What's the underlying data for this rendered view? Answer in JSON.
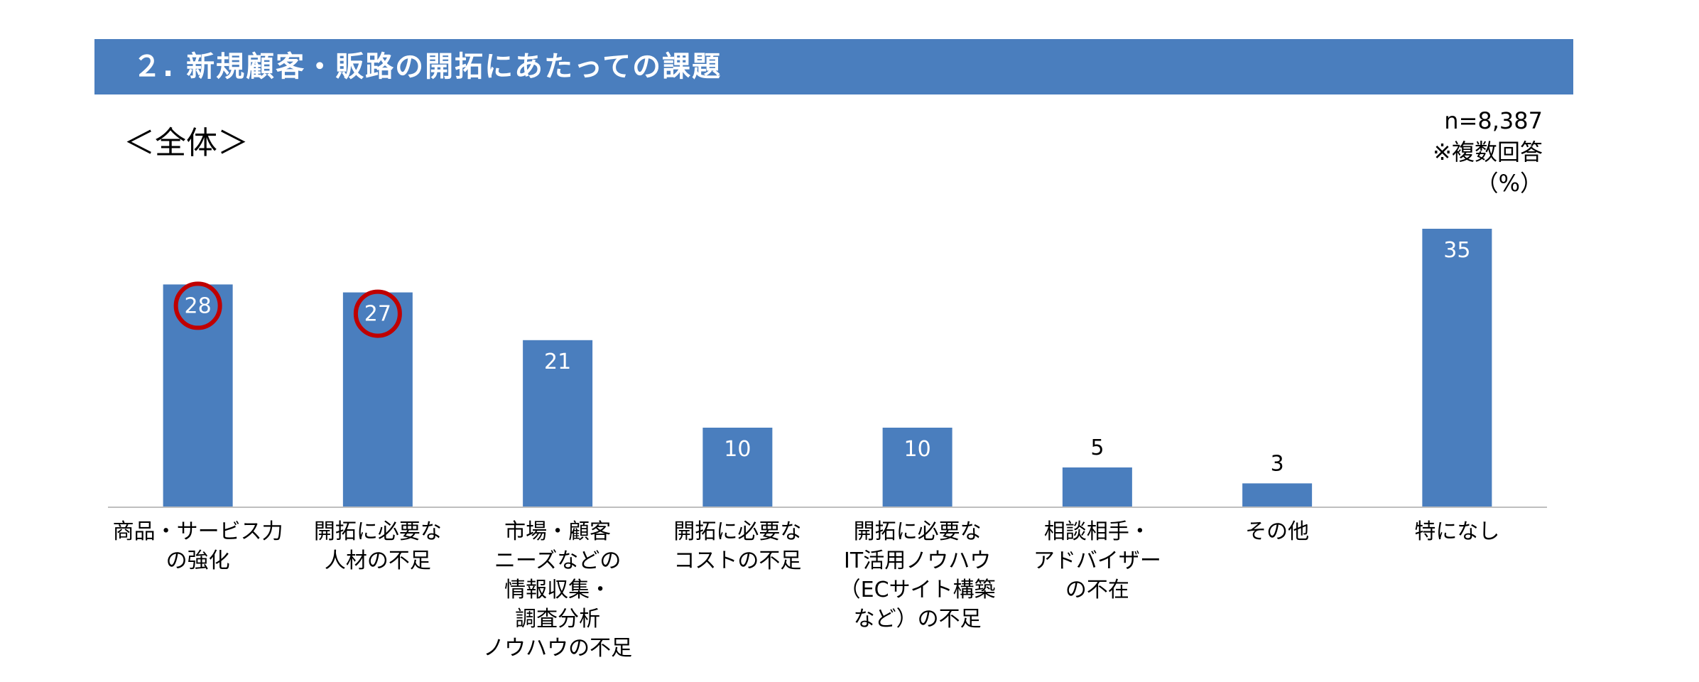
{
  "header": {
    "title": "２. 新規顧客・販路の開拓にあたっての課題"
  },
  "subtitle": "＜全体＞",
  "meta": {
    "sample": "n=8,387",
    "note": "※複数回答",
    "unit": "（%）"
  },
  "colors": {
    "bar": "#4a7ebe",
    "header": "#4a7ebe",
    "highlight": "#c00000",
    "axis": "#bfbfbf"
  },
  "chart_data": {
    "type": "bar",
    "categories": [
      [
        "商品・サービス力",
        "の強化"
      ],
      [
        "開拓に必要な",
        "人材の不足"
      ],
      [
        "市場・顧客",
        "ニーズなどの",
        "情報収集・",
        "調査分析",
        "ノウハウの不足"
      ],
      [
        "開拓に必要な",
        "コストの不足"
      ],
      [
        "開拓に必要な",
        "IT活用ノウハウ",
        "（ECサイト構築",
        "など）の不足"
      ],
      [
        "相談相手・",
        "アドバイザー",
        "の不在"
      ],
      [
        "その他"
      ],
      [
        "特になし"
      ]
    ],
    "values": [
      28,
      27,
      21,
      10,
      10,
      5,
      3,
      35
    ],
    "highlighted": [
      true,
      true,
      false,
      false,
      false,
      false,
      false,
      false
    ],
    "ylim": [
      0,
      35
    ],
    "grid": false,
    "legend": "none"
  }
}
